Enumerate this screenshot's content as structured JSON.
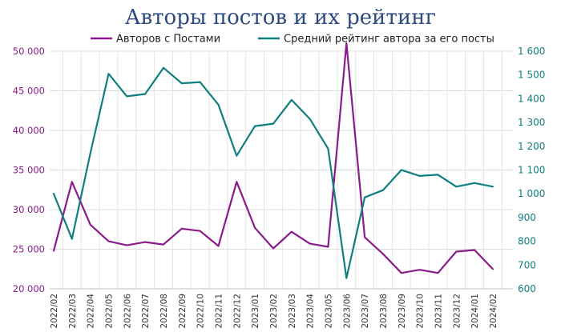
{
  "chart_data": {
    "type": "line",
    "title": "Авторы постов и их рейтинг",
    "x": [
      "2022/02",
      "2022/03",
      "2022/04",
      "2022/05",
      "2022/06",
      "2022/07",
      "2022/08",
      "2022/09",
      "2022/10",
      "2022/11",
      "2022/12",
      "2023/01",
      "2023/02",
      "2023/03",
      "2023/04",
      "2023/05",
      "2023/06",
      "2023/07",
      "2023/08",
      "2023/09",
      "2023/10",
      "2023/11",
      "2023/12",
      "2024/01",
      "2024/02"
    ],
    "series": [
      {
        "name": "Авторов с Постами",
        "axis": "left",
        "color": "#8b1a8b",
        "values": [
          24800,
          33500,
          28100,
          26000,
          25500,
          25900,
          25600,
          27600,
          27300,
          25400,
          33500,
          27700,
          25100,
          27200,
          25700,
          25300,
          51000,
          26500,
          24400,
          22000,
          22400,
          22000,
          24700,
          24900,
          22500
        ]
      },
      {
        "name": "Средний рейтинг автора за его посты",
        "axis": "right",
        "color": "#117e7e",
        "values": [
          1000,
          810,
          1170,
          1505,
          1410,
          1420,
          1530,
          1465,
          1470,
          1375,
          1160,
          1285,
          1295,
          1395,
          1315,
          1190,
          645,
          985,
          1015,
          1100,
          1075,
          1080,
          1030,
          1045,
          1030
        ]
      }
    ],
    "y_left": {
      "ylim": [
        20000,
        50000
      ],
      "ticks": [
        20000,
        25000,
        30000,
        35000,
        40000,
        45000,
        50000
      ],
      "tick_labels": [
        "20 000",
        "25 000",
        "30 000",
        "35 000",
        "40 000",
        "45 000",
        "50 000"
      ]
    },
    "y_right": {
      "ylim": [
        600,
        1600
      ],
      "ticks": [
        600,
        700,
        800,
        900,
        1000,
        1100,
        1200,
        1300,
        1400,
        1500,
        1600
      ],
      "tick_labels": [
        "600",
        "700",
        "800",
        "900",
        "1 000",
        "1 100",
        "1 200",
        "1 300",
        "1 400",
        "1 500",
        "1 600"
      ]
    },
    "grid": true,
    "legend_position": "top"
  }
}
